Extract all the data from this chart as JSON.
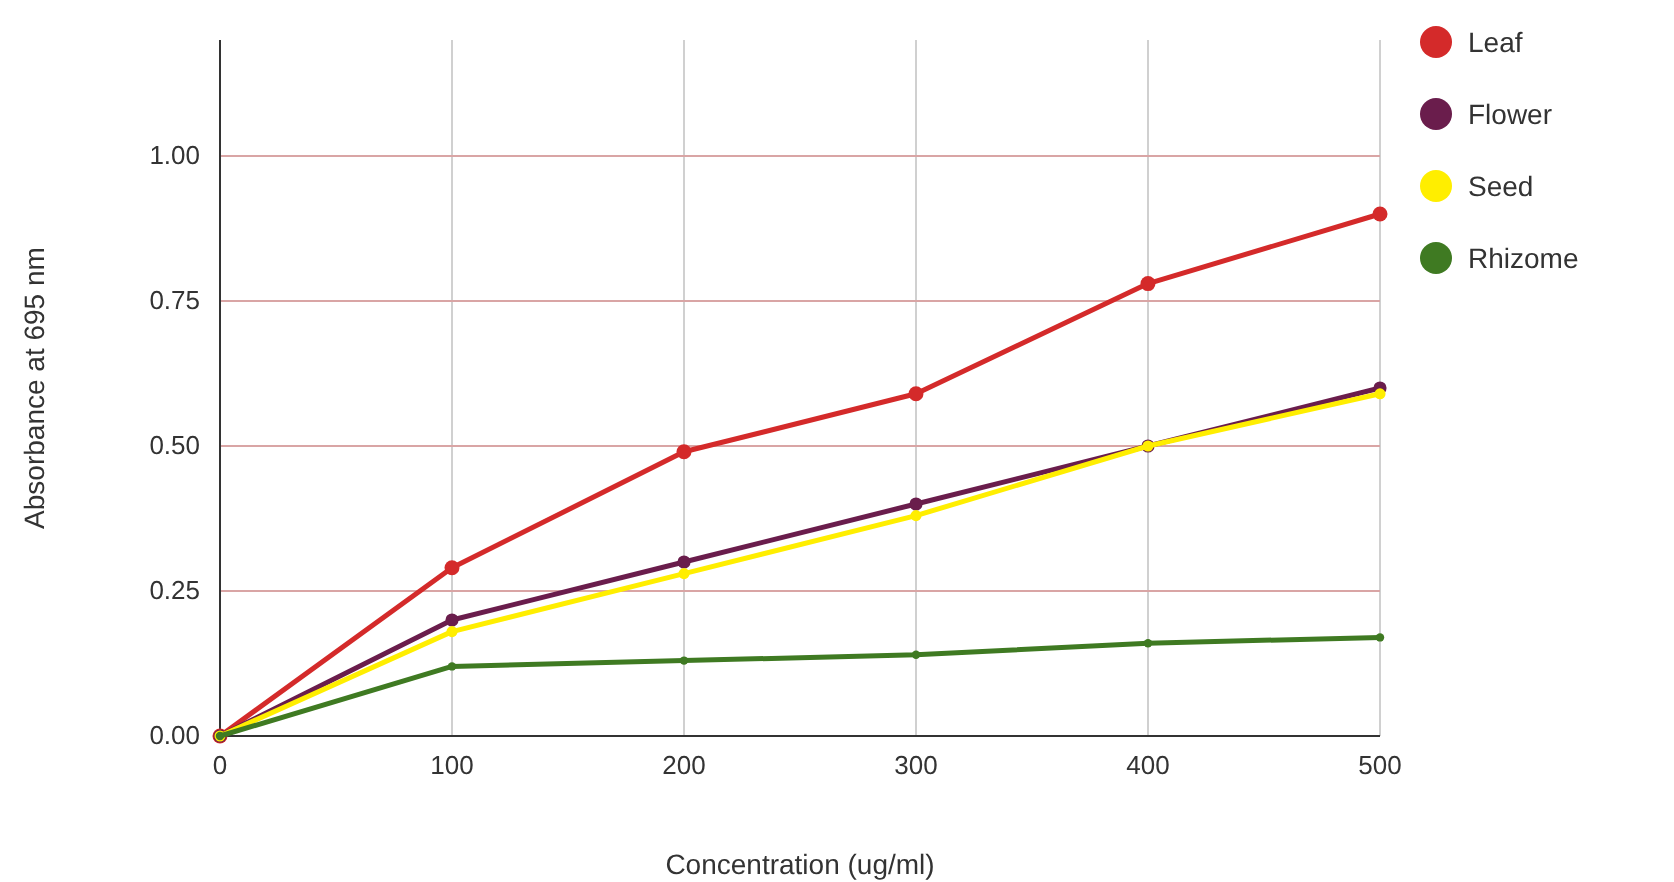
{
  "chart_data": {
    "type": "line",
    "xlabel": "Concentration (ug/ml)",
    "ylabel": "Absorbance at 695 nm",
    "x": [
      0,
      100,
      200,
      300,
      400,
      500
    ],
    "series": [
      {
        "name": "Leaf",
        "color": "#d42a2a",
        "values": [
          0,
          0.29,
          0.49,
          0.59,
          0.78,
          0.9
        ]
      },
      {
        "name": "Flower",
        "color": "#6a1d4c",
        "values": [
          0,
          0.2,
          0.3,
          0.4,
          0.5,
          0.6
        ]
      },
      {
        "name": "Seed",
        "color": "#ffee00",
        "values": [
          0,
          0.18,
          0.28,
          0.38,
          0.5,
          0.59
        ]
      },
      {
        "name": "Rhizome",
        "color": "#3f7a22",
        "values": [
          0,
          0.12,
          0.13,
          0.14,
          0.16,
          0.17
        ]
      }
    ],
    "xlim": [
      0,
      500
    ],
    "xticks": [
      0,
      100,
      200,
      300,
      400,
      500
    ],
    "ylim": [
      0,
      1.2
    ],
    "yticks": [
      {
        "value": 0,
        "label": "0.00"
      },
      {
        "value": 0.25,
        "label": "0.25"
      },
      {
        "value": 0.5,
        "label": "0.50"
      },
      {
        "value": 0.75,
        "label": "0.75"
      },
      {
        "value": 1,
        "label": "1.00"
      }
    ],
    "grid": true,
    "legend": "top right",
    "marker": "circle",
    "line_style": "solid"
  }
}
